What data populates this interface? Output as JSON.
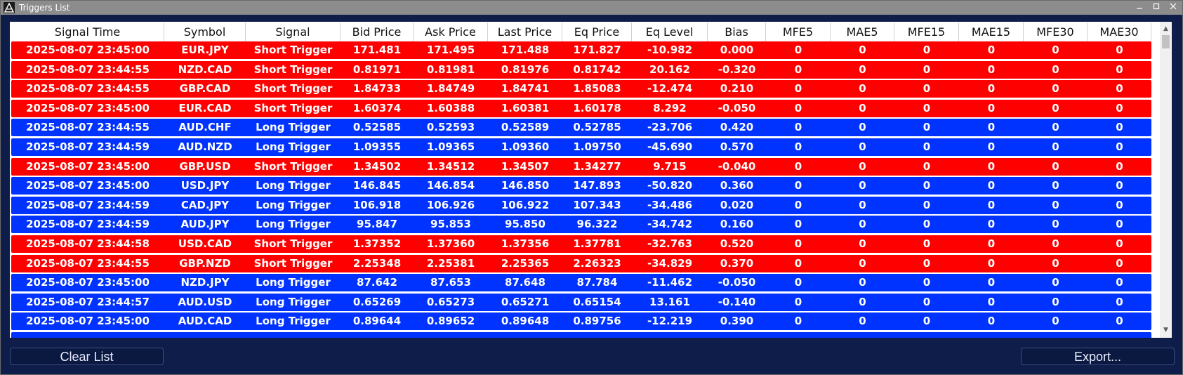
{
  "window": {
    "title": "Triggers List"
  },
  "columns": [
    "Signal Time",
    "Symbol",
    "Signal",
    "Bid Price",
    "Ask Price",
    "Last Price",
    "Eq Price",
    "Eq Level",
    "Bias",
    "MFE5",
    "MAE5",
    "MFE15",
    "MAE15",
    "MFE30",
    "MAE30"
  ],
  "rows": [
    {
      "type": "short",
      "cells": [
        "2025-08-07 23:45:00",
        "EUR.JPY",
        "Short Trigger",
        "171.481",
        "171.495",
        "171.488",
        "171.827",
        "-10.982",
        "0.000",
        "0",
        "0",
        "0",
        "0",
        "0",
        "0"
      ]
    },
    {
      "type": "short",
      "cells": [
        "2025-08-07 23:44:55",
        "NZD.CAD",
        "Short Trigger",
        "0.81971",
        "0.81981",
        "0.81976",
        "0.81742",
        "20.162",
        "-0.320",
        "0",
        "0",
        "0",
        "0",
        "0",
        "0"
      ]
    },
    {
      "type": "short",
      "cells": [
        "2025-08-07 23:44:55",
        "GBP.CAD",
        "Short Trigger",
        "1.84733",
        "1.84749",
        "1.84741",
        "1.85083",
        "-12.474",
        "0.210",
        "0",
        "0",
        "0",
        "0",
        "0",
        "0"
      ]
    },
    {
      "type": "short",
      "cells": [
        "2025-08-07 23:45:00",
        "EUR.CAD",
        "Short Trigger",
        "1.60374",
        "1.60388",
        "1.60381",
        "1.60178",
        "8.292",
        "-0.050",
        "0",
        "0",
        "0",
        "0",
        "0",
        "0"
      ]
    },
    {
      "type": "long",
      "cells": [
        "2025-08-07 23:44:55",
        "AUD.CHF",
        "Long Trigger",
        "0.52585",
        "0.52593",
        "0.52589",
        "0.52785",
        "-23.706",
        "0.420",
        "0",
        "0",
        "0",
        "0",
        "0",
        "0"
      ]
    },
    {
      "type": "long",
      "cells": [
        "2025-08-07 23:44:59",
        "AUD.NZD",
        "Long Trigger",
        "1.09355",
        "1.09365",
        "1.09360",
        "1.09750",
        "-45.690",
        "0.570",
        "0",
        "0",
        "0",
        "0",
        "0",
        "0"
      ]
    },
    {
      "type": "short",
      "cells": [
        "2025-08-07 23:45:00",
        "GBP.USD",
        "Short Trigger",
        "1.34502",
        "1.34512",
        "1.34507",
        "1.34277",
        "9.715",
        "-0.040",
        "0",
        "0",
        "0",
        "0",
        "0",
        "0"
      ]
    },
    {
      "type": "long",
      "cells": [
        "2025-08-07 23:45:00",
        "USD.JPY",
        "Long Trigger",
        "146.845",
        "146.854",
        "146.850",
        "147.893",
        "-50.820",
        "0.360",
        "0",
        "0",
        "0",
        "0",
        "0",
        "0"
      ]
    },
    {
      "type": "long",
      "cells": [
        "2025-08-07 23:44:59",
        "CAD.JPY",
        "Long Trigger",
        "106.918",
        "106.926",
        "106.922",
        "107.343",
        "-34.486",
        "0.020",
        "0",
        "0",
        "0",
        "0",
        "0",
        "0"
      ]
    },
    {
      "type": "long",
      "cells": [
        "2025-08-07 23:44:59",
        "AUD.JPY",
        "Long Trigger",
        "95.847",
        "95.853",
        "95.850",
        "96.322",
        "-34.742",
        "0.160",
        "0",
        "0",
        "0",
        "0",
        "0",
        "0"
      ]
    },
    {
      "type": "short",
      "cells": [
        "2025-08-07 23:44:58",
        "USD.CAD",
        "Short Trigger",
        "1.37352",
        "1.37360",
        "1.37356",
        "1.37781",
        "-32.763",
        "0.520",
        "0",
        "0",
        "0",
        "0",
        "0",
        "0"
      ]
    },
    {
      "type": "short",
      "cells": [
        "2025-08-07 23:44:55",
        "GBP.NZD",
        "Short Trigger",
        "2.25348",
        "2.25381",
        "2.25365",
        "2.26323",
        "-34.829",
        "0.370",
        "0",
        "0",
        "0",
        "0",
        "0",
        "0"
      ]
    },
    {
      "type": "long",
      "cells": [
        "2025-08-07 23:45:00",
        "NZD.JPY",
        "Long Trigger",
        "87.642",
        "87.653",
        "87.648",
        "87.784",
        "-11.462",
        "-0.050",
        "0",
        "0",
        "0",
        "0",
        "0",
        "0"
      ]
    },
    {
      "type": "long",
      "cells": [
        "2025-08-07 23:44:57",
        "AUD.USD",
        "Long Trigger",
        "0.65269",
        "0.65273",
        "0.65271",
        "0.65154",
        "13.161",
        "-0.140",
        "0",
        "0",
        "0",
        "0",
        "0",
        "0"
      ]
    },
    {
      "type": "long",
      "cells": [
        "2025-08-07 23:45:00",
        "AUD.CAD",
        "Long Trigger",
        "0.89644",
        "0.89652",
        "0.89648",
        "0.89756",
        "-12.219",
        "0.390",
        "0",
        "0",
        "0",
        "0",
        "0",
        "0"
      ]
    },
    {
      "type": "long",
      "cells": [
        "",
        "",
        "",
        "",
        "",
        "",
        "",
        "",
        "",
        "",
        "",
        "",
        "",
        "",
        ""
      ]
    }
  ],
  "buttons": {
    "clear": "Clear List",
    "export": "Export..."
  },
  "icons": {
    "app": "app-logo-icon",
    "minimize": "minimize-icon",
    "maximize": "maximize-icon",
    "close": "close-icon"
  },
  "colors": {
    "short_row": "#ff0000",
    "long_row": "#0033ff",
    "background": "#0f1d4a"
  }
}
